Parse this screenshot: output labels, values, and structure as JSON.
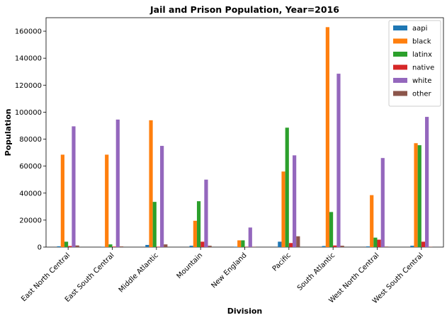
{
  "chart_data": {
    "type": "bar",
    "title": "Jail and Prison Population, Year=2016",
    "xlabel": "Division",
    "ylabel": "Population",
    "ylim": [
      0,
      170000
    ],
    "yticks": [
      0,
      20000,
      40000,
      60000,
      80000,
      100000,
      120000,
      140000,
      160000
    ],
    "grid": false,
    "legend_position": "top-right",
    "categories": [
      "East North Central",
      "East South Central",
      "Middle Atlantic",
      "Mountain",
      "New England",
      "Pacific",
      "South Atlantic",
      "West North Central",
      "West South Central"
    ],
    "series": [
      {
        "name": "aapi",
        "color": "#1f77b4",
        "values": [
          600,
          200,
          1600,
          1000,
          300,
          4000,
          800,
          500,
          1000
        ]
      },
      {
        "name": "black",
        "color": "#ff7f0e",
        "values": [
          68500,
          68500,
          94000,
          19500,
          5000,
          56000,
          163000,
          38500,
          77000
        ]
      },
      {
        "name": "latinx",
        "color": "#2ca02c",
        "values": [
          4000,
          2000,
          33500,
          34000,
          5000,
          88500,
          26000,
          7000,
          75500
        ]
      },
      {
        "name": "native",
        "color": "#d62728",
        "values": [
          800,
          400,
          300,
          4000,
          200,
          3000,
          1200,
          5500,
          4000
        ]
      },
      {
        "name": "white",
        "color": "#9467bd",
        "values": [
          89500,
          94500,
          75000,
          50000,
          14500,
          68000,
          128500,
          66000,
          96500
        ]
      },
      {
        "name": "other",
        "color": "#8c564b",
        "values": [
          1200,
          500,
          2000,
          1000,
          300,
          8000,
          1000,
          400,
          300
        ]
      }
    ]
  }
}
